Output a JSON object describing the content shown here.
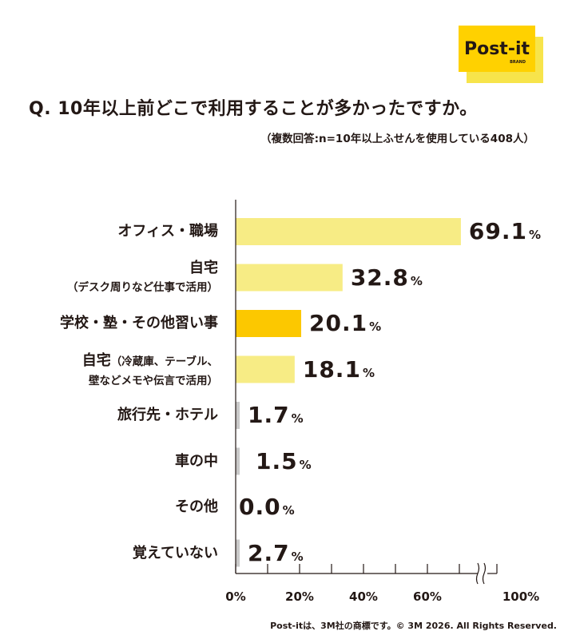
{
  "logo": {
    "brand": "Post-it",
    "sub": "BRAND",
    "colors": {
      "back": "#f7e44b",
      "front": "#ffd100",
      "text": "#231815"
    }
  },
  "title": "Q. 10年以上前どこで利用することが多かったですか。",
  "subtitle": "（複数回答:n=10年以上ふせんを使用している408人）",
  "footer": "Post-itは、3M社の商標です。© 3M 2026. All Rights Reserved.",
  "chart_data": {
    "type": "bar",
    "orientation": "horizontal",
    "unit": "%",
    "categories": [
      {
        "main": "オフィス・職場",
        "sub": ""
      },
      {
        "main": "自宅",
        "sub": "（デスク周りなど仕事で活用）"
      },
      {
        "main": "学校・塾・その他習い事",
        "sub": ""
      },
      {
        "main": "自宅",
        "sub": "（冷蔵庫、テーブル、",
        "sub2": "壁などメモや伝言で活用）"
      },
      {
        "main": "旅行先・ホテル",
        "sub": ""
      },
      {
        "main": "車の中",
        "sub": ""
      },
      {
        "main": "その他",
        "sub": ""
      },
      {
        "main": "覚えていない",
        "sub": ""
      }
    ],
    "values": [
      69.1,
      32.8,
      20.1,
      18.1,
      1.7,
      1.5,
      0.0,
      2.7
    ],
    "value_labels": [
      "69.1",
      "32.8",
      "20.1",
      "18.1",
      "1.7",
      "1.5",
      "0.0",
      "2.7"
    ],
    "highlight_index": 2,
    "x_ticks": [
      "0%",
      "20%",
      "40%",
      "60%",
      "100%"
    ],
    "axis_break": true,
    "xlim": [
      0,
      100
    ],
    "colors": {
      "bar": "#f7ec85",
      "highlight": "#fcc800",
      "small": "#c9c9c9",
      "axis": "#231815"
    }
  }
}
